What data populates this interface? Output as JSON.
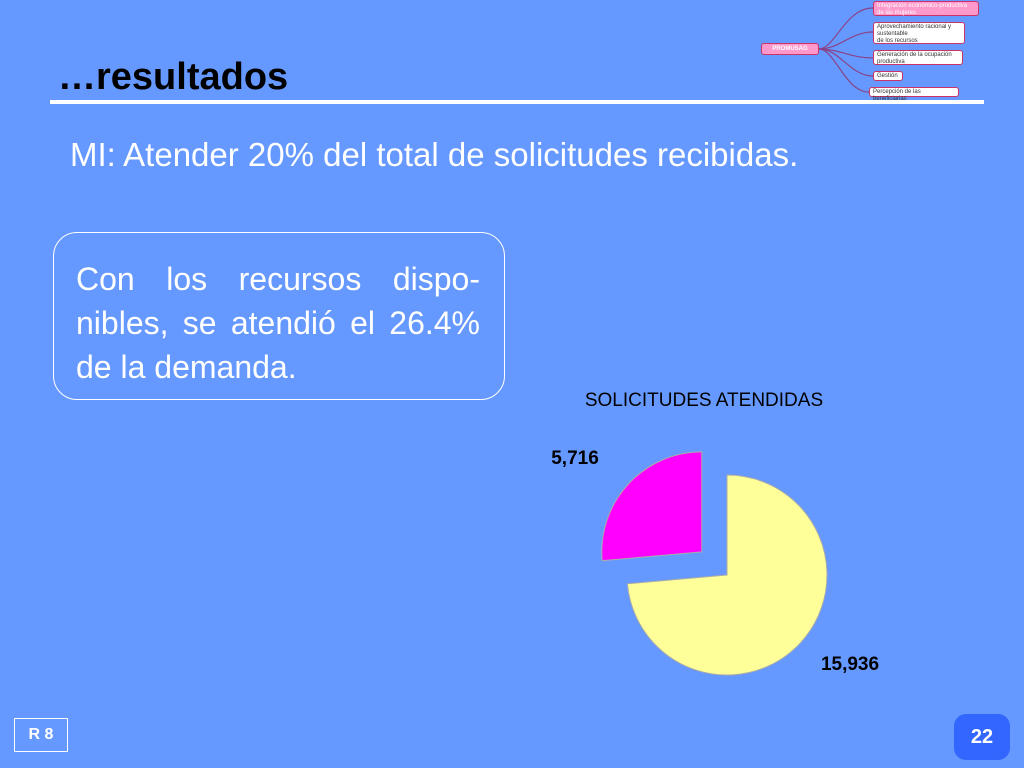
{
  "slide": {
    "title": "…resultados",
    "objective": "MI: Atender 20% del total de solicitudes recibidas.",
    "callout": "Con los recursos dispo-nibles, se atendió el 26.4% de la demanda.",
    "code_badge": "R 8",
    "page_number": "22"
  },
  "diagram": {
    "root": "PROMUSAG",
    "nodes": [
      "Integración económico-productiva\nde las mujeres",
      "Aprovechamiento racional y\nsustentable\nde los recursos",
      "Generación de la ocupación\nproductiva",
      "Gestión",
      "Percepción de las beneficiarias"
    ]
  },
  "chart_data": {
    "type": "pie",
    "title": "SOLICITUDES ATENDIDAS",
    "slices": [
      {
        "label": "5,716",
        "value": 5716,
        "color": "#FF00FF",
        "exploded": true
      },
      {
        "label": "15,936",
        "value": 15936,
        "color": "#FFFF99",
        "exploded": false
      }
    ],
    "start_angle_deg": 0,
    "direction": "counterclockwise",
    "legend": "none",
    "border_color": "#AAAAAA"
  }
}
